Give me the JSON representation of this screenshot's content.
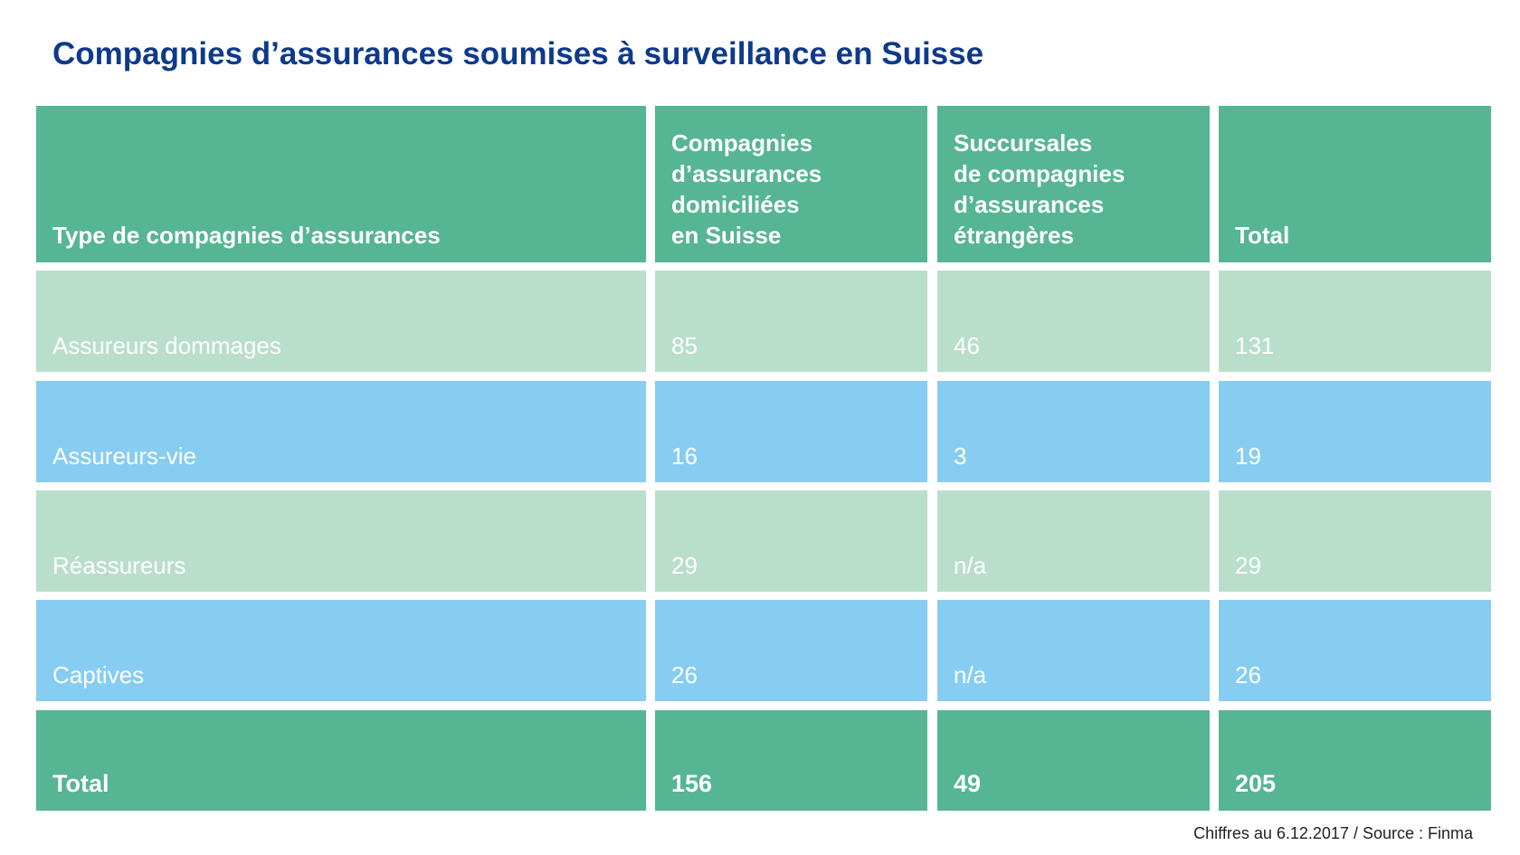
{
  "chart_data": {
    "type": "table",
    "title": "Compagnies d’assurances soumises à surveillance en Suisse",
    "columns": [
      "Type de compagnies d’assurances",
      "Compagnies\nd’assurances\ndomiciliées\nen Suisse",
      "Succursales\nde compagnies\nd’assurances\nétrangères",
      "Total"
    ],
    "rows": [
      [
        "Assureurs dommages",
        "85",
        "46",
        "131"
      ],
      [
        "Assureurs-vie",
        "16",
        "3",
        "19"
      ],
      [
        "Réassureurs",
        "29",
        "n/a",
        "29"
      ],
      [
        "Captives",
        "26",
        "n/a",
        "26"
      ]
    ],
    "total_row": [
      "Total",
      "156",
      "49",
      "205"
    ],
    "source": "Chiffres au 6.12.2017 / Source : Finma"
  },
  "colors": {
    "title": "#0e3a8c",
    "header_bg": "#56b593",
    "row_green_bg": "#b9dfcc",
    "row_blue_bg": "#86cdf1",
    "text_light": "#ffffff"
  }
}
